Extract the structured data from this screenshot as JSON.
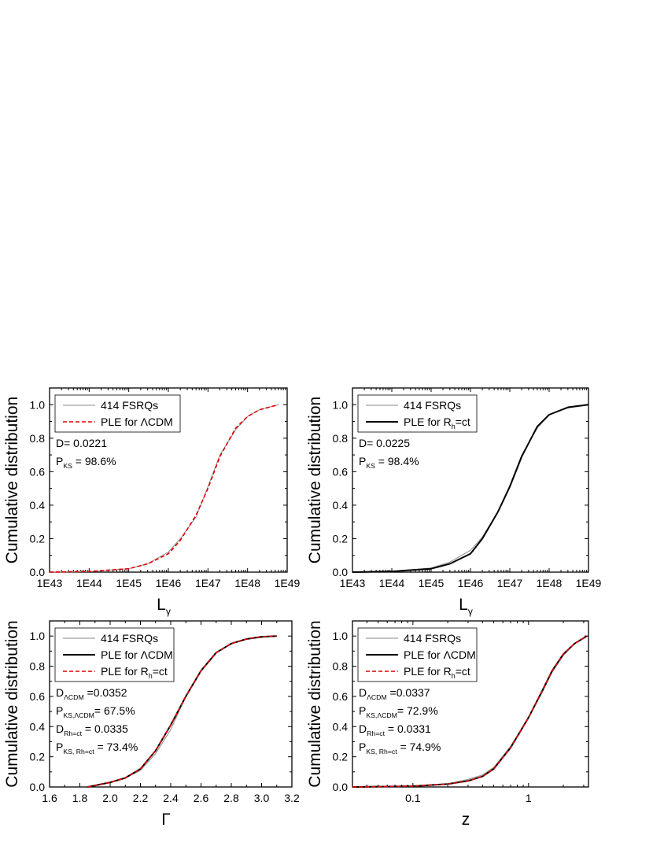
{
  "chart_data": [
    {
      "type": "line",
      "id": "a",
      "x_scale": "log",
      "xlabel_main": "L",
      "xlabel_sub": "γ",
      "ylabel": "Cumulative distribution",
      "xlim": [
        1e+43,
        1e+49
      ],
      "ylim": [
        0,
        1.1
      ],
      "xticks": [
        1e+43,
        1e+44,
        1e+45,
        1e+46,
        1e+47,
        1e+48,
        1e+49
      ],
      "xtick_labels": [
        "1E43",
        "1E44",
        "1E45",
        "1E46",
        "1E47",
        "1E48",
        "1E49"
      ],
      "yticks": [
        0,
        0.2,
        0.4,
        0.6,
        0.8,
        1.0
      ],
      "ytick_labels": [
        "0.0",
        "0.2",
        "0.4",
        "0.6",
        "0.8",
        "1.0"
      ],
      "legend_position": "top-left",
      "series": [
        {
          "name": "414 FSRQs",
          "style": "thin-gray",
          "x": [
            1e+43,
            1e+44,
            1e+45,
            3e+45,
            1e+46,
            2e+46,
            5e+46,
            1e+47,
            2e+47,
            5e+47,
            1e+48,
            2e+48,
            6e+48
          ],
          "y": [
            0.0,
            0.003,
            0.02,
            0.05,
            0.12,
            0.2,
            0.33,
            0.51,
            0.7,
            0.85,
            0.93,
            0.97,
            1.0
          ]
        },
        {
          "name": "PLE for ΛCDM",
          "style": "red-dashed",
          "x": [
            1e+43,
            1e+44,
            1e+45,
            3e+45,
            1e+46,
            2e+46,
            5e+46,
            1e+47,
            2e+47,
            5e+47,
            1e+48,
            2e+48,
            6e+48
          ],
          "y": [
            0.0,
            0.004,
            0.02,
            0.05,
            0.11,
            0.19,
            0.34,
            0.5,
            0.69,
            0.86,
            0.93,
            0.97,
            1.0
          ]
        }
      ],
      "annotations": [
        {
          "main": "D= 0.0221",
          "sub": "",
          "tail": ""
        },
        {
          "main": "P",
          "sub": "KS",
          "tail": " = 98.6%"
        }
      ]
    },
    {
      "type": "line",
      "id": "b",
      "x_scale": "log",
      "xlabel_main": "L",
      "xlabel_sub": "γ",
      "ylabel": "Cumulative distribution",
      "xlim": [
        1e+43,
        1e+49
      ],
      "ylim": [
        0,
        1.1
      ],
      "xticks": [
        1e+43,
        1e+44,
        1e+45,
        1e+46,
        1e+47,
        1e+48,
        1e+49
      ],
      "xtick_labels": [
        "1E43",
        "1E44",
        "1E45",
        "1E46",
        "1E47",
        "1E48",
        "1E49"
      ],
      "yticks": [
        0,
        0.2,
        0.4,
        0.6,
        0.8,
        1.0
      ],
      "ytick_labels": [
        "0.0",
        "0.2",
        "0.4",
        "0.6",
        "0.8",
        "1.0"
      ],
      "legend_position": "top-left",
      "series": [
        {
          "name": "414 FSRQs",
          "name_sub": "",
          "name_tail": "",
          "style": "thin-gray",
          "x": [
            1e+43,
            1e+44,
            1e+45,
            3e+45,
            1e+46,
            2e+46,
            5e+46,
            1e+47,
            2e+47,
            5e+47,
            1e+48,
            3e+48,
            1e+49
          ],
          "y": [
            0.0,
            0.004,
            0.025,
            0.06,
            0.13,
            0.21,
            0.36,
            0.52,
            0.7,
            0.86,
            0.94,
            0.98,
            1.0
          ]
        },
        {
          "name": "PLE for R",
          "name_sub": "h",
          "name_tail": "=ct",
          "style": "black-solid",
          "x": [
            1e+43,
            1e+44,
            1e+45,
            3e+45,
            1e+46,
            2e+46,
            5e+46,
            1e+47,
            2e+47,
            5e+47,
            1e+48,
            3e+48,
            1e+49
          ],
          "y": [
            0.0,
            0.004,
            0.02,
            0.05,
            0.11,
            0.2,
            0.36,
            0.51,
            0.69,
            0.87,
            0.94,
            0.985,
            1.0
          ]
        }
      ],
      "annotations": [
        {
          "main": "D= 0.0225",
          "sub": "",
          "tail": ""
        },
        {
          "main": "P",
          "sub": "KS",
          "tail": " = 98.4%"
        }
      ]
    },
    {
      "type": "line",
      "id": "c",
      "x_scale": "linear",
      "xlabel_main": "Γ",
      "xlabel_sub": "",
      "ylabel": "Cumulative distribution",
      "xlim": [
        1.6,
        3.2
      ],
      "ylim": [
        0,
        1.1
      ],
      "xticks": [
        1.6,
        1.8,
        2.0,
        2.2,
        2.4,
        2.6,
        2.8,
        3.0,
        3.2
      ],
      "xtick_labels": [
        "1.6",
        "1.8",
        "2.0",
        "2.2",
        "2.4",
        "2.6",
        "2.8",
        "3.0",
        "3.2"
      ],
      "yticks": [
        0,
        0.2,
        0.4,
        0.6,
        0.8,
        1.0
      ],
      "ytick_labels": [
        "0.0",
        "0.2",
        "0.4",
        "0.6",
        "0.8",
        "1.0"
      ],
      "legend_position": "top-left",
      "series": [
        {
          "name": "414 FSRQs",
          "name_sub": "",
          "name_tail": "",
          "style": "thin-gray",
          "x": [
            1.85,
            1.9,
            2.0,
            2.1,
            2.2,
            2.3,
            2.4,
            2.5,
            2.6,
            2.7,
            2.8,
            2.9,
            3.0,
            3.1
          ],
          "y": [
            0.0,
            0.01,
            0.03,
            0.06,
            0.11,
            0.22,
            0.38,
            0.6,
            0.77,
            0.89,
            0.95,
            0.98,
            0.99,
            1.0
          ]
        },
        {
          "name": "PLE for ΛCDM",
          "name_sub": "",
          "name_tail": "",
          "style": "black-solid",
          "x": [
            1.85,
            1.9,
            2.0,
            2.1,
            2.2,
            2.3,
            2.4,
            2.5,
            2.6,
            2.7,
            2.8,
            2.9,
            3.0,
            3.1
          ],
          "y": [
            0.0,
            0.01,
            0.03,
            0.06,
            0.12,
            0.24,
            0.41,
            0.6,
            0.77,
            0.89,
            0.95,
            0.98,
            0.995,
            1.0
          ]
        },
        {
          "name": "PLE for R",
          "name_sub": "h",
          "name_tail": "=ct",
          "style": "red-dashed",
          "x": [
            1.85,
            1.9,
            2.0,
            2.1,
            2.2,
            2.3,
            2.4,
            2.5,
            2.6,
            2.7,
            2.8,
            2.9,
            3.0,
            3.1
          ],
          "y": [
            0.0,
            0.01,
            0.03,
            0.06,
            0.12,
            0.24,
            0.41,
            0.6,
            0.77,
            0.89,
            0.95,
            0.98,
            0.995,
            1.0
          ]
        }
      ],
      "annotations": [
        {
          "main": "D",
          "sub": "ΛCDM",
          "tail": " =0.0352"
        },
        {
          "main": "P",
          "sub": "KS,ΛCDM",
          "tail": "= 67.5%"
        },
        {
          "main": "D",
          "sub": "Rh=ct",
          "tail": " = 0.0335"
        },
        {
          "main": "P",
          "sub": "KS, Rh=ct",
          "tail": " = 73.4%"
        }
      ]
    },
    {
      "type": "line",
      "id": "d",
      "x_scale": "log",
      "xlabel_main": "z",
      "xlabel_sub": "",
      "ylabel": "Cumulative distribution",
      "xlim": [
        0.03,
        3.3
      ],
      "ylim": [
        0,
        1.1
      ],
      "xticks": [
        0.1,
        1
      ],
      "xtick_labels": [
        "0.1",
        "1"
      ],
      "yticks": [
        0,
        0.2,
        0.4,
        0.6,
        0.8,
        1.0
      ],
      "ytick_labels": [
        "0.0",
        "0.2",
        "0.4",
        "0.6",
        "0.8",
        "1.0"
      ],
      "legend_position": "top-left",
      "series": [
        {
          "name": "414 FSRQs",
          "name_sub": "",
          "name_tail": "",
          "style": "thin-gray",
          "x": [
            0.03,
            0.1,
            0.2,
            0.3,
            0.4,
            0.5,
            0.7,
            1.0,
            1.3,
            1.6,
            2.0,
            2.5,
            3.2
          ],
          "y": [
            0.0,
            0.005,
            0.02,
            0.05,
            0.08,
            0.13,
            0.27,
            0.46,
            0.62,
            0.76,
            0.87,
            0.95,
            1.0
          ]
        },
        {
          "name": "PLE for ΛCDM",
          "name_sub": "",
          "name_tail": "",
          "style": "black-solid",
          "x": [
            0.03,
            0.1,
            0.2,
            0.3,
            0.4,
            0.5,
            0.7,
            1.0,
            1.3,
            1.6,
            2.0,
            2.5,
            3.2
          ],
          "y": [
            0.0,
            0.005,
            0.02,
            0.04,
            0.07,
            0.12,
            0.26,
            0.46,
            0.63,
            0.77,
            0.88,
            0.95,
            1.0
          ]
        },
        {
          "name": "PLE for R",
          "name_sub": "h",
          "name_tail": "=ct",
          "style": "red-dashed",
          "x": [
            0.03,
            0.1,
            0.2,
            0.3,
            0.4,
            0.5,
            0.7,
            1.0,
            1.3,
            1.6,
            2.0,
            2.5,
            3.2
          ],
          "y": [
            0.0,
            0.005,
            0.02,
            0.04,
            0.07,
            0.12,
            0.26,
            0.46,
            0.63,
            0.77,
            0.88,
            0.95,
            1.0
          ]
        }
      ],
      "annotations": [
        {
          "main": "D",
          "sub": "ΛCDM",
          "tail": " =0.0337"
        },
        {
          "main": "P",
          "sub": "KS,ΛCDM",
          "tail": "= 72.9%"
        },
        {
          "main": "D",
          "sub": "Rh=ct",
          "tail": " = 0.0331"
        },
        {
          "main": "P",
          "sub": "KS, Rh=ct",
          "tail": " = 74.9%"
        }
      ]
    }
  ]
}
